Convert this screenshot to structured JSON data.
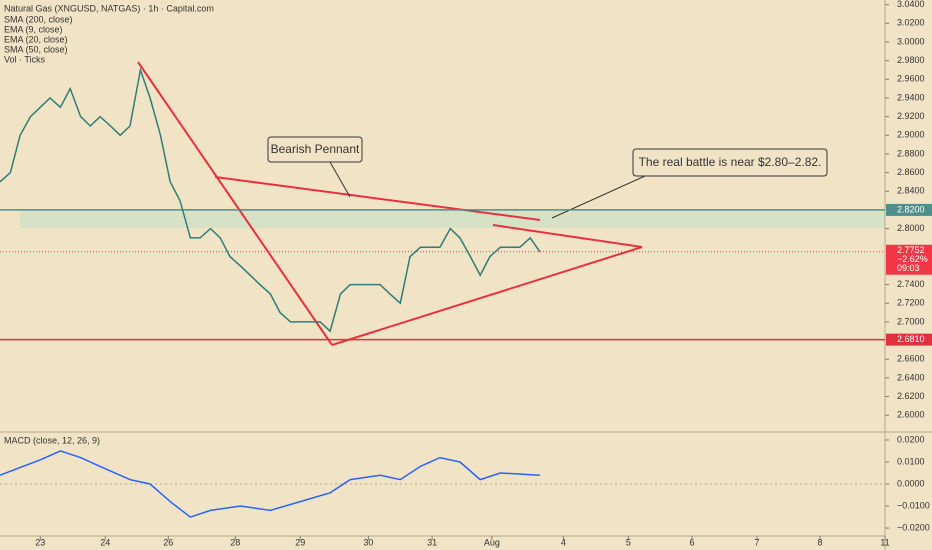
{
  "header": {
    "title": "Natural Gas (XNGUSD, NATGAS) · 1h · Capital.com",
    "indicators": [
      "SMA (200, close)",
      "EMA (9, close)",
      "EMA (20, close)",
      "SMA (50, close)",
      "Vol · Ticks"
    ]
  },
  "chart_data": [
    {
      "type": "line",
      "color": "#2f7d76",
      "x": [
        -0.62,
        -0.46,
        -0.31,
        -0.15,
        0,
        0.15,
        0.31,
        0.46,
        0.62,
        0.77,
        0.92,
        1.08,
        1.23,
        1.38,
        1.54,
        1.69,
        1.85,
        2.0,
        2.15,
        2.31,
        2.46,
        2.62,
        2.77,
        2.92,
        3.08,
        3.23,
        3.38,
        3.54,
        3.69,
        3.85,
        4.0,
        4.15,
        4.31,
        4.46,
        4.62,
        4.77,
        4.92,
        5.08,
        5.23,
        5.38,
        5.54,
        5.69,
        5.85,
        6.0,
        6.15,
        6.31,
        6.46,
        6.62,
        6.77,
        6.92,
        7.08,
        7.23,
        7.38,
        7.54,
        7.69
      ],
      "values": [
        2.85,
        2.86,
        2.9,
        2.92,
        2.93,
        2.94,
        2.93,
        2.95,
        2.92,
        2.91,
        2.92,
        2.91,
        2.9,
        2.91,
        2.97,
        2.94,
        2.9,
        2.85,
        2.83,
        2.79,
        2.79,
        2.8,
        2.79,
        2.77,
        2.76,
        2.75,
        2.74,
        2.73,
        2.71,
        2.7,
        2.7,
        2.7,
        2.7,
        2.69,
        2.73,
        2.74,
        2.74,
        2.74,
        2.74,
        2.73,
        2.72,
        2.77,
        2.78,
        2.78,
        2.78,
        2.8,
        2.79,
        2.77,
        2.75,
        2.77,
        2.78,
        2.78,
        2.78,
        2.79,
        2.775
      ],
      "xlim": [
        -0.62,
        13.0
      ],
      "ylim": [
        2.582,
        3.045
      ],
      "xticks": [
        {
          "value": 0,
          "label": "23"
        },
        {
          "value": 1,
          "label": "24"
        },
        {
          "value": 1.97,
          "label": "26"
        },
        {
          "value": 3.0,
          "label": "28"
        },
        {
          "value": 4.0,
          "label": "29"
        },
        {
          "value": 5.05,
          "label": "30"
        },
        {
          "value": 6.03,
          "label": "31"
        },
        {
          "value": 6.95,
          "label": "Aug"
        },
        {
          "value": 8.05,
          "label": "4"
        },
        {
          "value": 9.05,
          "label": "5"
        },
        {
          "value": 10.03,
          "label": "6"
        },
        {
          "value": 11.03,
          "label": "7"
        },
        {
          "value": 12.0,
          "label": "8"
        },
        {
          "value": 13.0,
          "label": "11"
        }
      ],
      "yticks": [
        {
          "value": 3.04,
          "label": "3.0400"
        },
        {
          "value": 3.02,
          "label": "3.0200"
        },
        {
          "value": 3.0,
          "label": "3.0000"
        },
        {
          "value": 2.98,
          "label": "2.9800"
        },
        {
          "value": 2.96,
          "label": "2.9600"
        },
        {
          "value": 2.94,
          "label": "2.9400"
        },
        {
          "value": 2.92,
          "label": "2.9200"
        },
        {
          "value": 2.9,
          "label": "2.9000"
        },
        {
          "value": 2.88,
          "label": "2.8800"
        },
        {
          "value": 2.86,
          "label": "2.8600"
        },
        {
          "value": 2.84,
          "label": "2.8400"
        },
        {
          "value": 2.8,
          "label": "2.8000"
        },
        {
          "value": 2.74,
          "label": "2.7400"
        },
        {
          "value": 2.72,
          "label": "2.7200"
        },
        {
          "value": 2.7,
          "label": "2.7000"
        },
        {
          "value": 2.66,
          "label": "2.6600"
        },
        {
          "value": 2.64,
          "label": "2.6400"
        },
        {
          "value": 2.62,
          "label": "2.6200"
        },
        {
          "value": 2.6,
          "label": "2.6000"
        }
      ],
      "levels": [
        {
          "value": 2.82,
          "label": "2.8200",
          "color": "#4f8e8a"
        },
        {
          "value": 2.681,
          "label": "2.6810",
          "color": "#e0313f"
        }
      ],
      "last_price": {
        "value": 2.7752,
        "label": "2.7752",
        "change": "−2.62%",
        "countdown": "09:03",
        "color": "#f23645"
      },
      "annotations": [
        "Bearish Pennant",
        "The real battle is near $2.80–2.82."
      ]
    },
    {
      "type": "line",
      "title": "MACD (close, 12, 26, 9)",
      "color": "#2962ff",
      "x": [
        -0.62,
        0,
        0.31,
        0.62,
        0.92,
        1.38,
        1.69,
        2.0,
        2.31,
        2.62,
        3.08,
        3.54,
        4.0,
        4.46,
        4.77,
        5.23,
        5.54,
        5.85,
        6.15,
        6.46,
        6.77,
        7.08,
        7.69
      ],
      "values": [
        0.004,
        0.011,
        0.015,
        0.012,
        0.008,
        0.002,
        0.0,
        -0.008,
        -0.015,
        -0.012,
        -0.01,
        -0.012,
        -0.008,
        -0.004,
        0.002,
        0.004,
        0.002,
        0.008,
        0.012,
        0.01,
        0.002,
        0.005,
        0.004
      ],
      "xlim": [
        -0.62,
        13.0
      ],
      "ylim": [
        -0.0236,
        0.0236
      ],
      "yticks": [
        {
          "value": 0.02,
          "label": "0.0200"
        },
        {
          "value": 0.01,
          "label": "0.0100"
        },
        {
          "value": 0,
          "label": "0.0000"
        },
        {
          "value": -0.01,
          "label": "−0.0100"
        },
        {
          "value": -0.02,
          "label": "−0.0200"
        }
      ]
    }
  ]
}
